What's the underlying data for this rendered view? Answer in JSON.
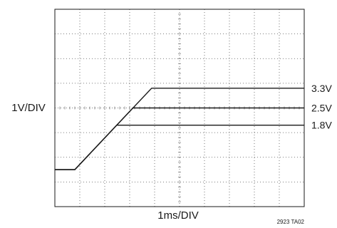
{
  "chart_data": {
    "type": "line",
    "title": "",
    "xlabel": "1ms/DIV",
    "ylabel": "1V/DIV",
    "figure_code": "2923 TA02",
    "grid": true,
    "grid_style": "dotted",
    "x_divisions": 10,
    "y_divisions": 8,
    "x_unit": "ms",
    "y_unit": "V",
    "xlim": [
      0,
      10
    ],
    "ylim": [
      -1.5,
      6.5
    ],
    "series": [
      {
        "name": "3.3V",
        "x": [
          0,
          0.8,
          3.88,
          10
        ],
        "y": [
          0,
          0,
          3.3,
          3.3
        ]
      },
      {
        "name": "2.5V",
        "x": [
          0,
          0.8,
          3.13,
          10
        ],
        "y": [
          0,
          0,
          2.5,
          2.5
        ]
      },
      {
        "name": "1.8V",
        "x": [
          0,
          0.8,
          2.48,
          10
        ],
        "y": [
          0,
          0,
          1.8,
          1.8
        ]
      }
    ],
    "colors": {
      "trace": "#1a1a1a",
      "grid": "#555555",
      "frame": "#1a1a1a"
    }
  }
}
